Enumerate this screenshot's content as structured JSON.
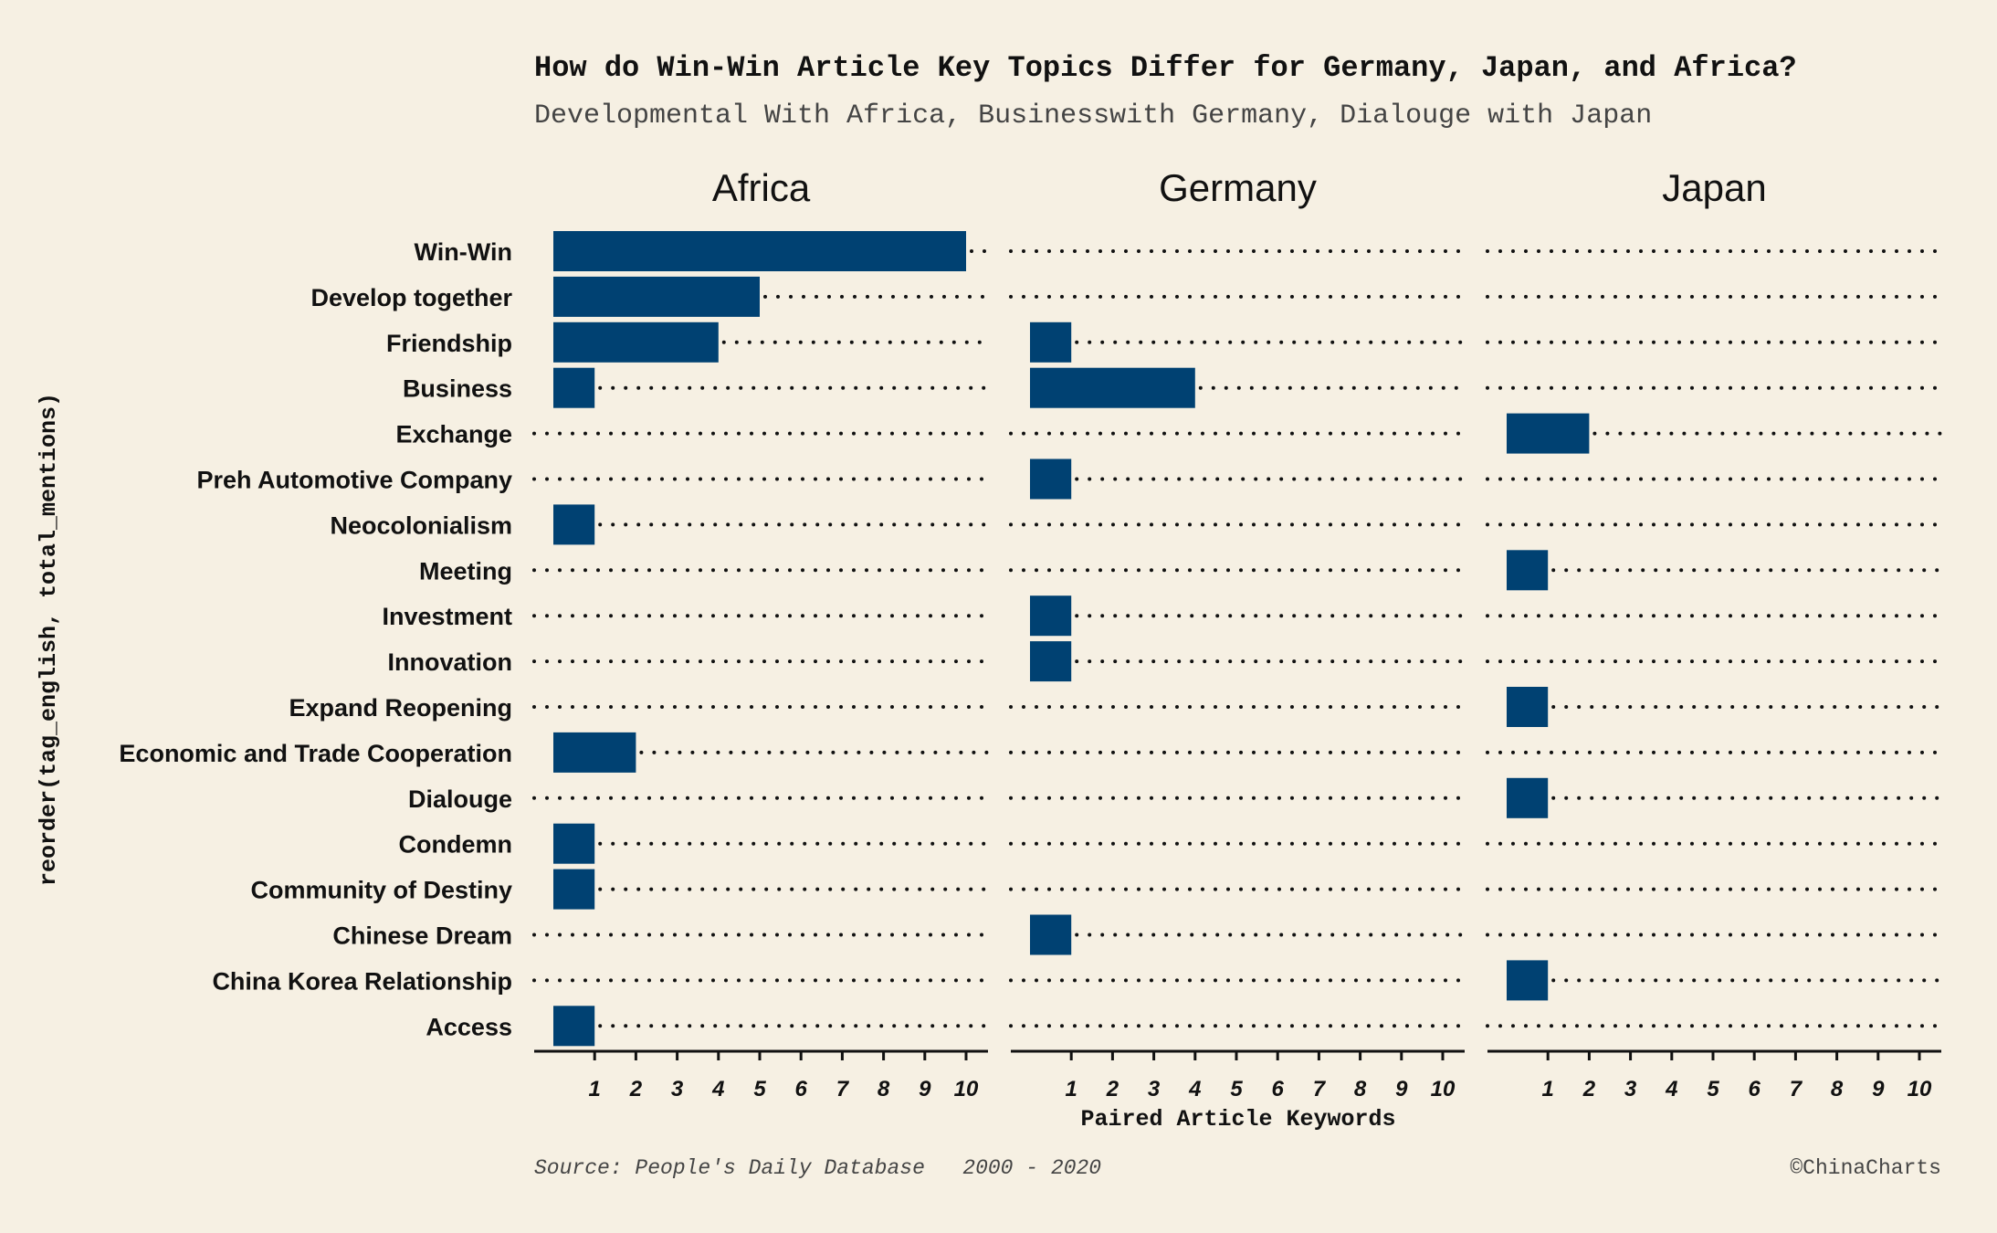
{
  "chart_data": {
    "type": "bar",
    "orientation": "horizontal",
    "title": "How do Win-Win Article Key Topics Differ for Germany, Japan, and Africa?",
    "subtitle": "Developmental With Africa, Businesswith Germany, Dialouge with Japan",
    "xlabel": "Paired Article Keywords",
    "ylabel": "reorder(tag_english, total_mentions)",
    "caption_left": "Source: People's Daily Database   2000 - 2020",
    "caption_right": "©ChinaCharts",
    "x_ticks": [
      "1",
      "2",
      "3",
      "4",
      "5",
      "6",
      "7",
      "8",
      "9",
      "10"
    ],
    "xlim": [
      0,
      10
    ],
    "grid": "dotted horizontal lines",
    "bar_color": "#004172",
    "background_color": "#f6f0e3",
    "categories": [
      "Win-Win",
      "Develop together",
      "Friendship",
      "Business",
      "Exchange",
      "Preh Automotive Company",
      "Neocolonialism",
      "Meeting",
      "Investment",
      "Innovation",
      "Expand Reopening",
      "Economic and Trade Cooperation",
      "Dialouge",
      "Condemn",
      "Community of Destiny",
      "Chinese Dream",
      "China Korea Relationship",
      "Access"
    ],
    "panels": [
      {
        "name": "Africa",
        "values": [
          10,
          5,
          4,
          1,
          0,
          0,
          1,
          0,
          0,
          0,
          0,
          2,
          0,
          1,
          1,
          0,
          0,
          1
        ]
      },
      {
        "name": "Germany",
        "values": [
          0,
          0,
          1,
          4,
          0,
          1,
          0,
          0,
          1,
          1,
          0,
          0,
          0,
          0,
          0,
          1,
          0,
          0
        ]
      },
      {
        "name": "Japan",
        "values": [
          0,
          0,
          0,
          0,
          2,
          0,
          0,
          1,
          0,
          0,
          1,
          0,
          1,
          0,
          0,
          0,
          1,
          0
        ]
      }
    ]
  }
}
